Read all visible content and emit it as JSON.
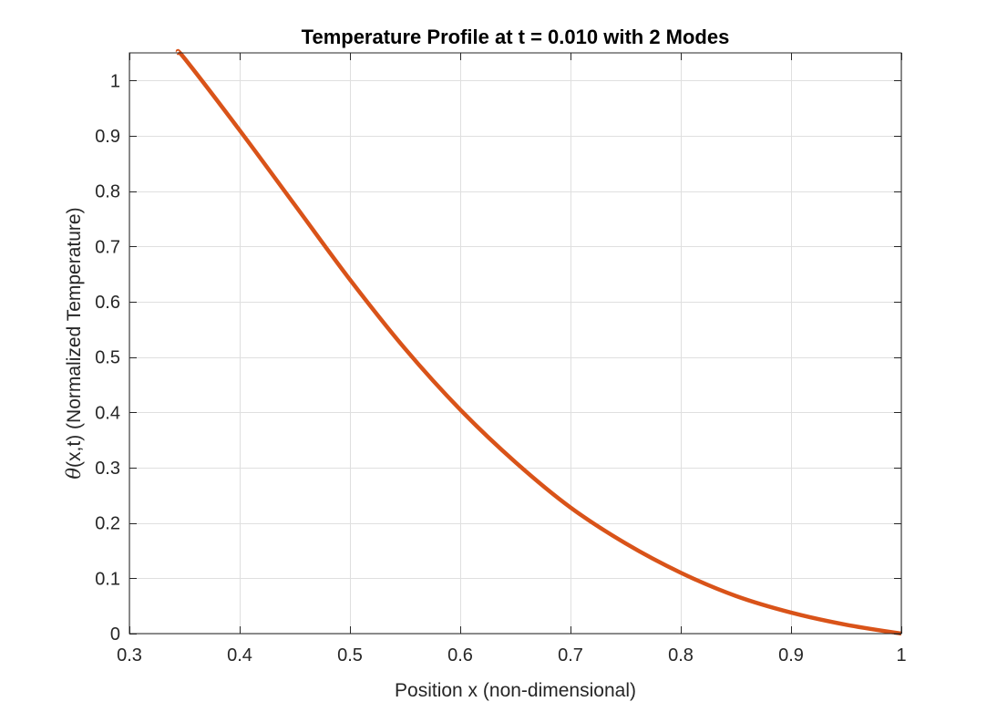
{
  "chart_data": {
    "type": "line",
    "title": "Temperature Profile at t = 0.010 with 2 Modes",
    "xlabel": "Position x (non-dimensional)",
    "ylabel_symbol": "θ",
    "ylabel_rest": "(x,t) (Normalized Temperature)",
    "xlim": [
      0.3,
      1.0
    ],
    "ylim": [
      0,
      1.05
    ],
    "xticks": [
      0.3,
      0.4,
      0.5,
      0.6,
      0.7,
      0.8,
      0.9,
      1.0
    ],
    "xtick_labels": [
      "0.3",
      "0.4",
      "0.5",
      "0.6",
      "0.7",
      "0.8",
      "0.9",
      "1"
    ],
    "yticks": [
      0,
      0.1,
      0.2,
      0.3,
      0.4,
      0.5,
      0.6,
      0.7,
      0.8,
      0.9,
      1.0
    ],
    "ytick_labels": [
      "0",
      "0.1",
      "0.2",
      "0.3",
      "0.4",
      "0.5",
      "0.6",
      "0.7",
      "0.8",
      "0.9",
      "1"
    ],
    "grid": true,
    "colors": {
      "line": "#D95319",
      "grid": "#dfdfdf",
      "axis": "#262626"
    },
    "series": [
      {
        "x": [
          0.344,
          0.35,
          0.4,
          0.45,
          0.5,
          0.55,
          0.6,
          0.65,
          0.7,
          0.75,
          0.8,
          0.85,
          0.9,
          0.95,
          1.0
        ],
        "y": [
          1.05,
          1.04,
          0.91,
          0.775,
          0.64,
          0.515,
          0.405,
          0.31,
          0.228,
          0.163,
          0.11,
          0.068,
          0.038,
          0.016,
          0.0
        ]
      }
    ]
  }
}
